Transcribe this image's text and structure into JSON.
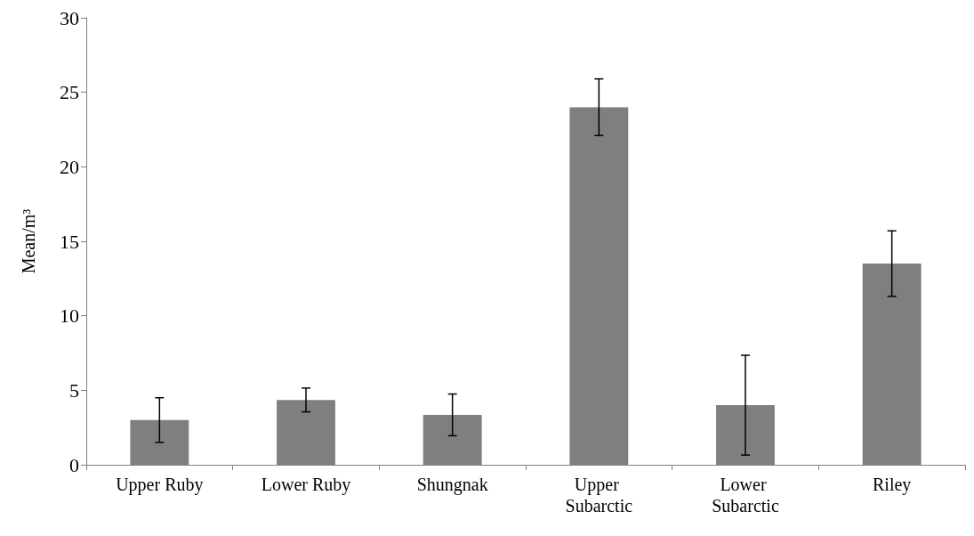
{
  "chart_data": {
    "type": "bar",
    "ylabel": "Mean/m³",
    "categories": [
      "Upper Ruby",
      "Lower Ruby",
      "Shungnak",
      "Upper Subarctic",
      "Lower Subarctic",
      "Riley"
    ],
    "values": [
      3.0,
      4.35,
      3.35,
      24.0,
      4.0,
      13.5
    ],
    "errors": [
      1.5,
      0.8,
      1.4,
      1.9,
      3.35,
      2.2
    ],
    "color": "#7f7f7f",
    "ylim": [
      0,
      30
    ],
    "yticks": [
      0,
      5,
      10,
      15,
      20,
      25,
      30
    ],
    "grid": false
  }
}
